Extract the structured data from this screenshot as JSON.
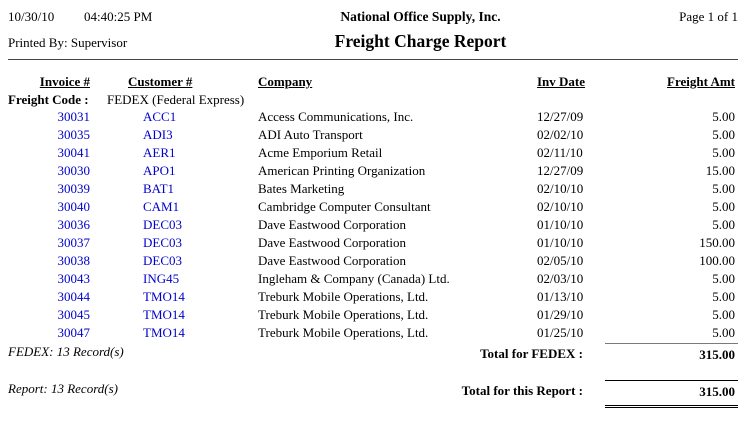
{
  "page": {
    "printed_date": "10/30/10",
    "printed_time": "04:40:25 PM",
    "printed_by": "Printed By: Supervisor",
    "company_name": "National Office Supply, Inc.",
    "report_title": "Freight Charge Report",
    "page_indicator": "Page 1 of  1"
  },
  "colors": {
    "link_blue": "#0000CC"
  },
  "table": {
    "headers": {
      "invoice": "Invoice #",
      "customer": "Customer #",
      "company": "Company",
      "inv_date": "Inv Date",
      "freight_amt": "Freight Amt"
    },
    "group_header": {
      "label": "Freight Code :",
      "value": "FEDEX (Federal Express)"
    },
    "rows": [
      {
        "invoice": "30031",
        "customer": "ACC1",
        "company": "Access Communications, Inc.",
        "inv_date": "12/27/09",
        "amount": "5.00"
      },
      {
        "invoice": "30035",
        "customer": "ADI3",
        "company": "ADI Auto Transport",
        "inv_date": "02/02/10",
        "amount": "5.00"
      },
      {
        "invoice": "30041",
        "customer": "AER1",
        "company": "Acme Emporium Retail",
        "inv_date": "02/11/10",
        "amount": "5.00"
      },
      {
        "invoice": "30030",
        "customer": "APO1",
        "company": "American Printing Organization",
        "inv_date": "12/27/09",
        "amount": "15.00"
      },
      {
        "invoice": "30039",
        "customer": "BAT1",
        "company": "Bates Marketing",
        "inv_date": "02/10/10",
        "amount": "5.00"
      },
      {
        "invoice": "30040",
        "customer": "CAM1",
        "company": "Cambridge Computer Consultant",
        "inv_date": "02/10/10",
        "amount": "5.00"
      },
      {
        "invoice": "30036",
        "customer": "DEC03",
        "company": "Dave Eastwood Corporation",
        "inv_date": "01/10/10",
        "amount": "5.00"
      },
      {
        "invoice": "30037",
        "customer": "DEC03",
        "company": "Dave Eastwood Corporation",
        "inv_date": "01/10/10",
        "amount": "150.00"
      },
      {
        "invoice": "30038",
        "customer": "DEC03",
        "company": "Dave Eastwood Corporation",
        "inv_date": "02/05/10",
        "amount": "100.00"
      },
      {
        "invoice": "30043",
        "customer": "ING45",
        "company": "Ingleham & Company (Canada) Ltd.",
        "inv_date": "02/03/10",
        "amount": "5.00"
      },
      {
        "invoice": "30044",
        "customer": "TMO14",
        "company": "Treburk Mobile Operations, Ltd.",
        "inv_date": "01/13/10",
        "amount": "5.00"
      },
      {
        "invoice": "30045",
        "customer": "TMO14",
        "company": "Treburk Mobile Operations, Ltd.",
        "inv_date": "01/29/10",
        "amount": "5.00"
      },
      {
        "invoice": "30047",
        "customer": "TMO14",
        "company": "Treburk Mobile Operations, Ltd.",
        "inv_date": "01/25/10",
        "amount": "5.00"
      }
    ],
    "group_total": {
      "record_count": "FEDEX: 13 Record(s)",
      "label": "Total for FEDEX :",
      "amount": "315.00"
    },
    "report_total": {
      "record_count": "Report: 13 Record(s)",
      "label": "Total for this Report :",
      "amount": "315.00"
    }
  }
}
